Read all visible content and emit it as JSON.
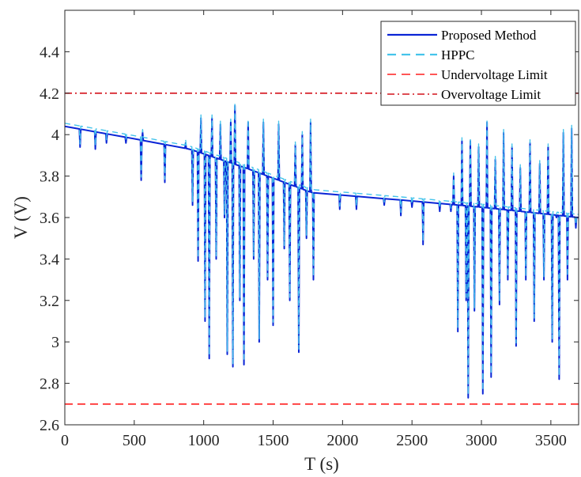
{
  "chart_data": {
    "type": "line",
    "xlabel": "T (s)",
    "ylabel": "V (V)",
    "xlim": [
      0,
      3700
    ],
    "ylim": [
      2.6,
      4.6
    ],
    "x_ticks": [
      0,
      500,
      1000,
      1500,
      2000,
      2500,
      3000,
      3500
    ],
    "x_tick_labels": [
      "0",
      "500",
      "1000",
      "1500",
      "2000",
      "2500",
      "3000",
      "3500"
    ],
    "y_ticks": [
      2.6,
      2.8,
      3.0,
      3.2,
      3.4,
      3.6,
      3.8,
      4.0,
      4.2,
      4.4
    ],
    "y_tick_labels": [
      "2.6",
      "2.8",
      "3",
      "3.2",
      "3.4",
      "3.6",
      "3.8",
      "4",
      "4.2",
      "4.4"
    ],
    "grid": false,
    "legend_position": "top-right",
    "baseline": [
      {
        "x": 0,
        "y": 4.04
      },
      {
        "x": 500,
        "y": 3.98
      },
      {
        "x": 900,
        "y": 3.93
      },
      {
        "x": 1300,
        "y": 3.84
      },
      {
        "x": 1780,
        "y": 3.72
      },
      {
        "x": 2500,
        "y": 3.68
      },
      {
        "x": 3000,
        "y": 3.65
      },
      {
        "x": 3700,
        "y": 3.6
      }
    ],
    "spikes": [
      {
        "x": 110,
        "y": 3.94
      },
      {
        "x": 220,
        "y": 3.93
      },
      {
        "x": 300,
        "y": 3.96
      },
      {
        "x": 440,
        "y": 3.96
      },
      {
        "x": 550,
        "y": 3.78
      },
      {
        "x": 560,
        "y": 4.01
      },
      {
        "x": 720,
        "y": 3.77
      },
      {
        "x": 870,
        "y": 3.96
      },
      {
        "x": 920,
        "y": 3.66
      },
      {
        "x": 960,
        "y": 3.39
      },
      {
        "x": 980,
        "y": 4.08
      },
      {
        "x": 1010,
        "y": 3.1
      },
      {
        "x": 1040,
        "y": 2.92
      },
      {
        "x": 1060,
        "y": 4.08
      },
      {
        "x": 1090,
        "y": 3.4
      },
      {
        "x": 1120,
        "y": 4.05
      },
      {
        "x": 1150,
        "y": 3.6
      },
      {
        "x": 1170,
        "y": 2.94
      },
      {
        "x": 1195,
        "y": 4.06
      },
      {
        "x": 1210,
        "y": 2.88
      },
      {
        "x": 1225,
        "y": 4.14
      },
      {
        "x": 1260,
        "y": 3.2
      },
      {
        "x": 1290,
        "y": 2.89
      },
      {
        "x": 1320,
        "y": 4.06
      },
      {
        "x": 1360,
        "y": 3.4
      },
      {
        "x": 1400,
        "y": 3.0
      },
      {
        "x": 1430,
        "y": 4.06
      },
      {
        "x": 1460,
        "y": 3.3
      },
      {
        "x": 1500,
        "y": 3.08
      },
      {
        "x": 1540,
        "y": 4.05
      },
      {
        "x": 1580,
        "y": 3.45
      },
      {
        "x": 1620,
        "y": 3.2
      },
      {
        "x": 1660,
        "y": 3.95
      },
      {
        "x": 1685,
        "y": 2.95
      },
      {
        "x": 1710,
        "y": 4.0
      },
      {
        "x": 1740,
        "y": 3.5
      },
      {
        "x": 1770,
        "y": 4.06
      },
      {
        "x": 1790,
        "y": 3.3
      },
      {
        "x": 1980,
        "y": 3.64
      },
      {
        "x": 2100,
        "y": 3.64
      },
      {
        "x": 2300,
        "y": 3.66
      },
      {
        "x": 2420,
        "y": 3.61
      },
      {
        "x": 2500,
        "y": 3.65
      },
      {
        "x": 2580,
        "y": 3.47
      },
      {
        "x": 2700,
        "y": 3.63
      },
      {
        "x": 2780,
        "y": 3.63
      },
      {
        "x": 2800,
        "y": 3.8
      },
      {
        "x": 2830,
        "y": 3.05
      },
      {
        "x": 2860,
        "y": 3.97
      },
      {
        "x": 2890,
        "y": 3.2
      },
      {
        "x": 2905,
        "y": 2.73
      },
      {
        "x": 2920,
        "y": 3.97
      },
      {
        "x": 2950,
        "y": 3.15
      },
      {
        "x": 2980,
        "y": 3.94
      },
      {
        "x": 3010,
        "y": 2.75
      },
      {
        "x": 3040,
        "y": 4.06
      },
      {
        "x": 3070,
        "y": 2.83
      },
      {
        "x": 3100,
        "y": 3.88
      },
      {
        "x": 3130,
        "y": 3.18
      },
      {
        "x": 3160,
        "y": 4.01
      },
      {
        "x": 3190,
        "y": 3.3
      },
      {
        "x": 3220,
        "y": 3.94
      },
      {
        "x": 3250,
        "y": 2.98
      },
      {
        "x": 3280,
        "y": 3.84
      },
      {
        "x": 3320,
        "y": 3.3
      },
      {
        "x": 3350,
        "y": 3.96
      },
      {
        "x": 3380,
        "y": 3.1
      },
      {
        "x": 3420,
        "y": 3.86
      },
      {
        "x": 3450,
        "y": 3.3
      },
      {
        "x": 3480,
        "y": 3.94
      },
      {
        "x": 3510,
        "y": 3.0
      },
      {
        "x": 3540,
        "y": 3.6
      },
      {
        "x": 3560,
        "y": 2.82
      },
      {
        "x": 3590,
        "y": 4.01
      },
      {
        "x": 3620,
        "y": 3.3
      },
      {
        "x": 3650,
        "y": 4.03
      },
      {
        "x": 3680,
        "y": 3.55
      }
    ],
    "series": [
      {
        "name": "Proposed Method",
        "color": "#0a24d6",
        "style": "solid"
      },
      {
        "name": "HPPC",
        "color": "#45c4eb",
        "style": "dashed"
      }
    ],
    "reference_lines": [
      {
        "name": "Undervoltage Limit",
        "y": 2.7,
        "color": "#ff1f1f",
        "style": "dashed"
      },
      {
        "name": "Overvoltage Limit",
        "y": 4.2,
        "color": "#d4121b",
        "style": "dashdot"
      }
    ]
  }
}
